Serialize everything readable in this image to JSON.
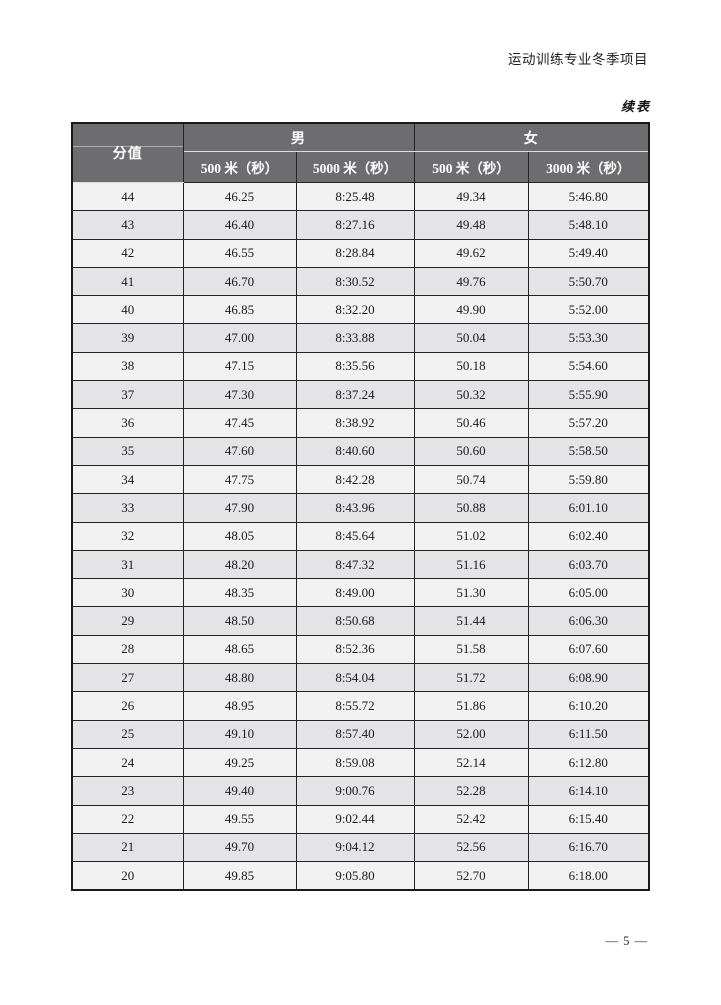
{
  "page": {
    "running_header": "运动训练专业冬季项目",
    "continuation_label": "续表",
    "page_number": "— 5 —"
  },
  "table": {
    "score_header": "分值",
    "group_headers": {
      "male": "男",
      "female": "女"
    },
    "sub_headers": {
      "male_500": "500 米（秒）",
      "male_5000": "5000 米（秒）",
      "female_500": "500 米（秒）",
      "female_3000": "3000 米（秒）"
    },
    "rows": [
      {
        "score": "44",
        "m500": "46.25",
        "m5000": "8:25.48",
        "f500": "49.34",
        "f3000": "5:46.80"
      },
      {
        "score": "43",
        "m500": "46.40",
        "m5000": "8:27.16",
        "f500": "49.48",
        "f3000": "5:48.10"
      },
      {
        "score": "42",
        "m500": "46.55",
        "m5000": "8:28.84",
        "f500": "49.62",
        "f3000": "5:49.40"
      },
      {
        "score": "41",
        "m500": "46.70",
        "m5000": "8:30.52",
        "f500": "49.76",
        "f3000": "5:50.70"
      },
      {
        "score": "40",
        "m500": "46.85",
        "m5000": "8:32.20",
        "f500": "49.90",
        "f3000": "5:52.00"
      },
      {
        "score": "39",
        "m500": "47.00",
        "m5000": "8:33.88",
        "f500": "50.04",
        "f3000": "5:53.30"
      },
      {
        "score": "38",
        "m500": "47.15",
        "m5000": "8:35.56",
        "f500": "50.18",
        "f3000": "5:54.60"
      },
      {
        "score": "37",
        "m500": "47.30",
        "m5000": "8:37.24",
        "f500": "50.32",
        "f3000": "5:55.90"
      },
      {
        "score": "36",
        "m500": "47.45",
        "m5000": "8:38.92",
        "f500": "50.46",
        "f3000": "5:57.20"
      },
      {
        "score": "35",
        "m500": "47.60",
        "m5000": "8:40.60",
        "f500": "50.60",
        "f3000": "5:58.50"
      },
      {
        "score": "34",
        "m500": "47.75",
        "m5000": "8:42.28",
        "f500": "50.74",
        "f3000": "5:59.80"
      },
      {
        "score": "33",
        "m500": "47.90",
        "m5000": "8:43.96",
        "f500": "50.88",
        "f3000": "6:01.10"
      },
      {
        "score": "32",
        "m500": "48.05",
        "m5000": "8:45.64",
        "f500": "51.02",
        "f3000": "6:02.40"
      },
      {
        "score": "31",
        "m500": "48.20",
        "m5000": "8:47.32",
        "f500": "51.16",
        "f3000": "6:03.70"
      },
      {
        "score": "30",
        "m500": "48.35",
        "m5000": "8:49.00",
        "f500": "51.30",
        "f3000": "6:05.00"
      },
      {
        "score": "29",
        "m500": "48.50",
        "m5000": "8:50.68",
        "f500": "51.44",
        "f3000": "6:06.30"
      },
      {
        "score": "28",
        "m500": "48.65",
        "m5000": "8:52.36",
        "f500": "51.58",
        "f3000": "6:07.60"
      },
      {
        "score": "27",
        "m500": "48.80",
        "m5000": "8:54.04",
        "f500": "51.72",
        "f3000": "6:08.90"
      },
      {
        "score": "26",
        "m500": "48.95",
        "m5000": "8:55.72",
        "f500": "51.86",
        "f3000": "6:10.20"
      },
      {
        "score": "25",
        "m500": "49.10",
        "m5000": "8:57.40",
        "f500": "52.00",
        "f3000": "6:11.50"
      },
      {
        "score": "24",
        "m500": "49.25",
        "m5000": "8:59.08",
        "f500": "52.14",
        "f3000": "6:12.80"
      },
      {
        "score": "23",
        "m500": "49.40",
        "m5000": "9:00.76",
        "f500": "52.28",
        "f3000": "6:14.10"
      },
      {
        "score": "22",
        "m500": "49.55",
        "m5000": "9:02.44",
        "f500": "52.42",
        "f3000": "6:15.40"
      },
      {
        "score": "21",
        "m500": "49.70",
        "m5000": "9:04.12",
        "f500": "52.56",
        "f3000": "6:16.70"
      },
      {
        "score": "20",
        "m500": "49.85",
        "m5000": "9:05.80",
        "f500": "52.70",
        "f3000": "6:18.00"
      }
    ]
  },
  "colors": {
    "header_bg": "#6d6d70",
    "header_text": "#ffffff",
    "row_light": "#f2f2f2",
    "row_dark": "#e4e4e6",
    "border": "#242424"
  }
}
